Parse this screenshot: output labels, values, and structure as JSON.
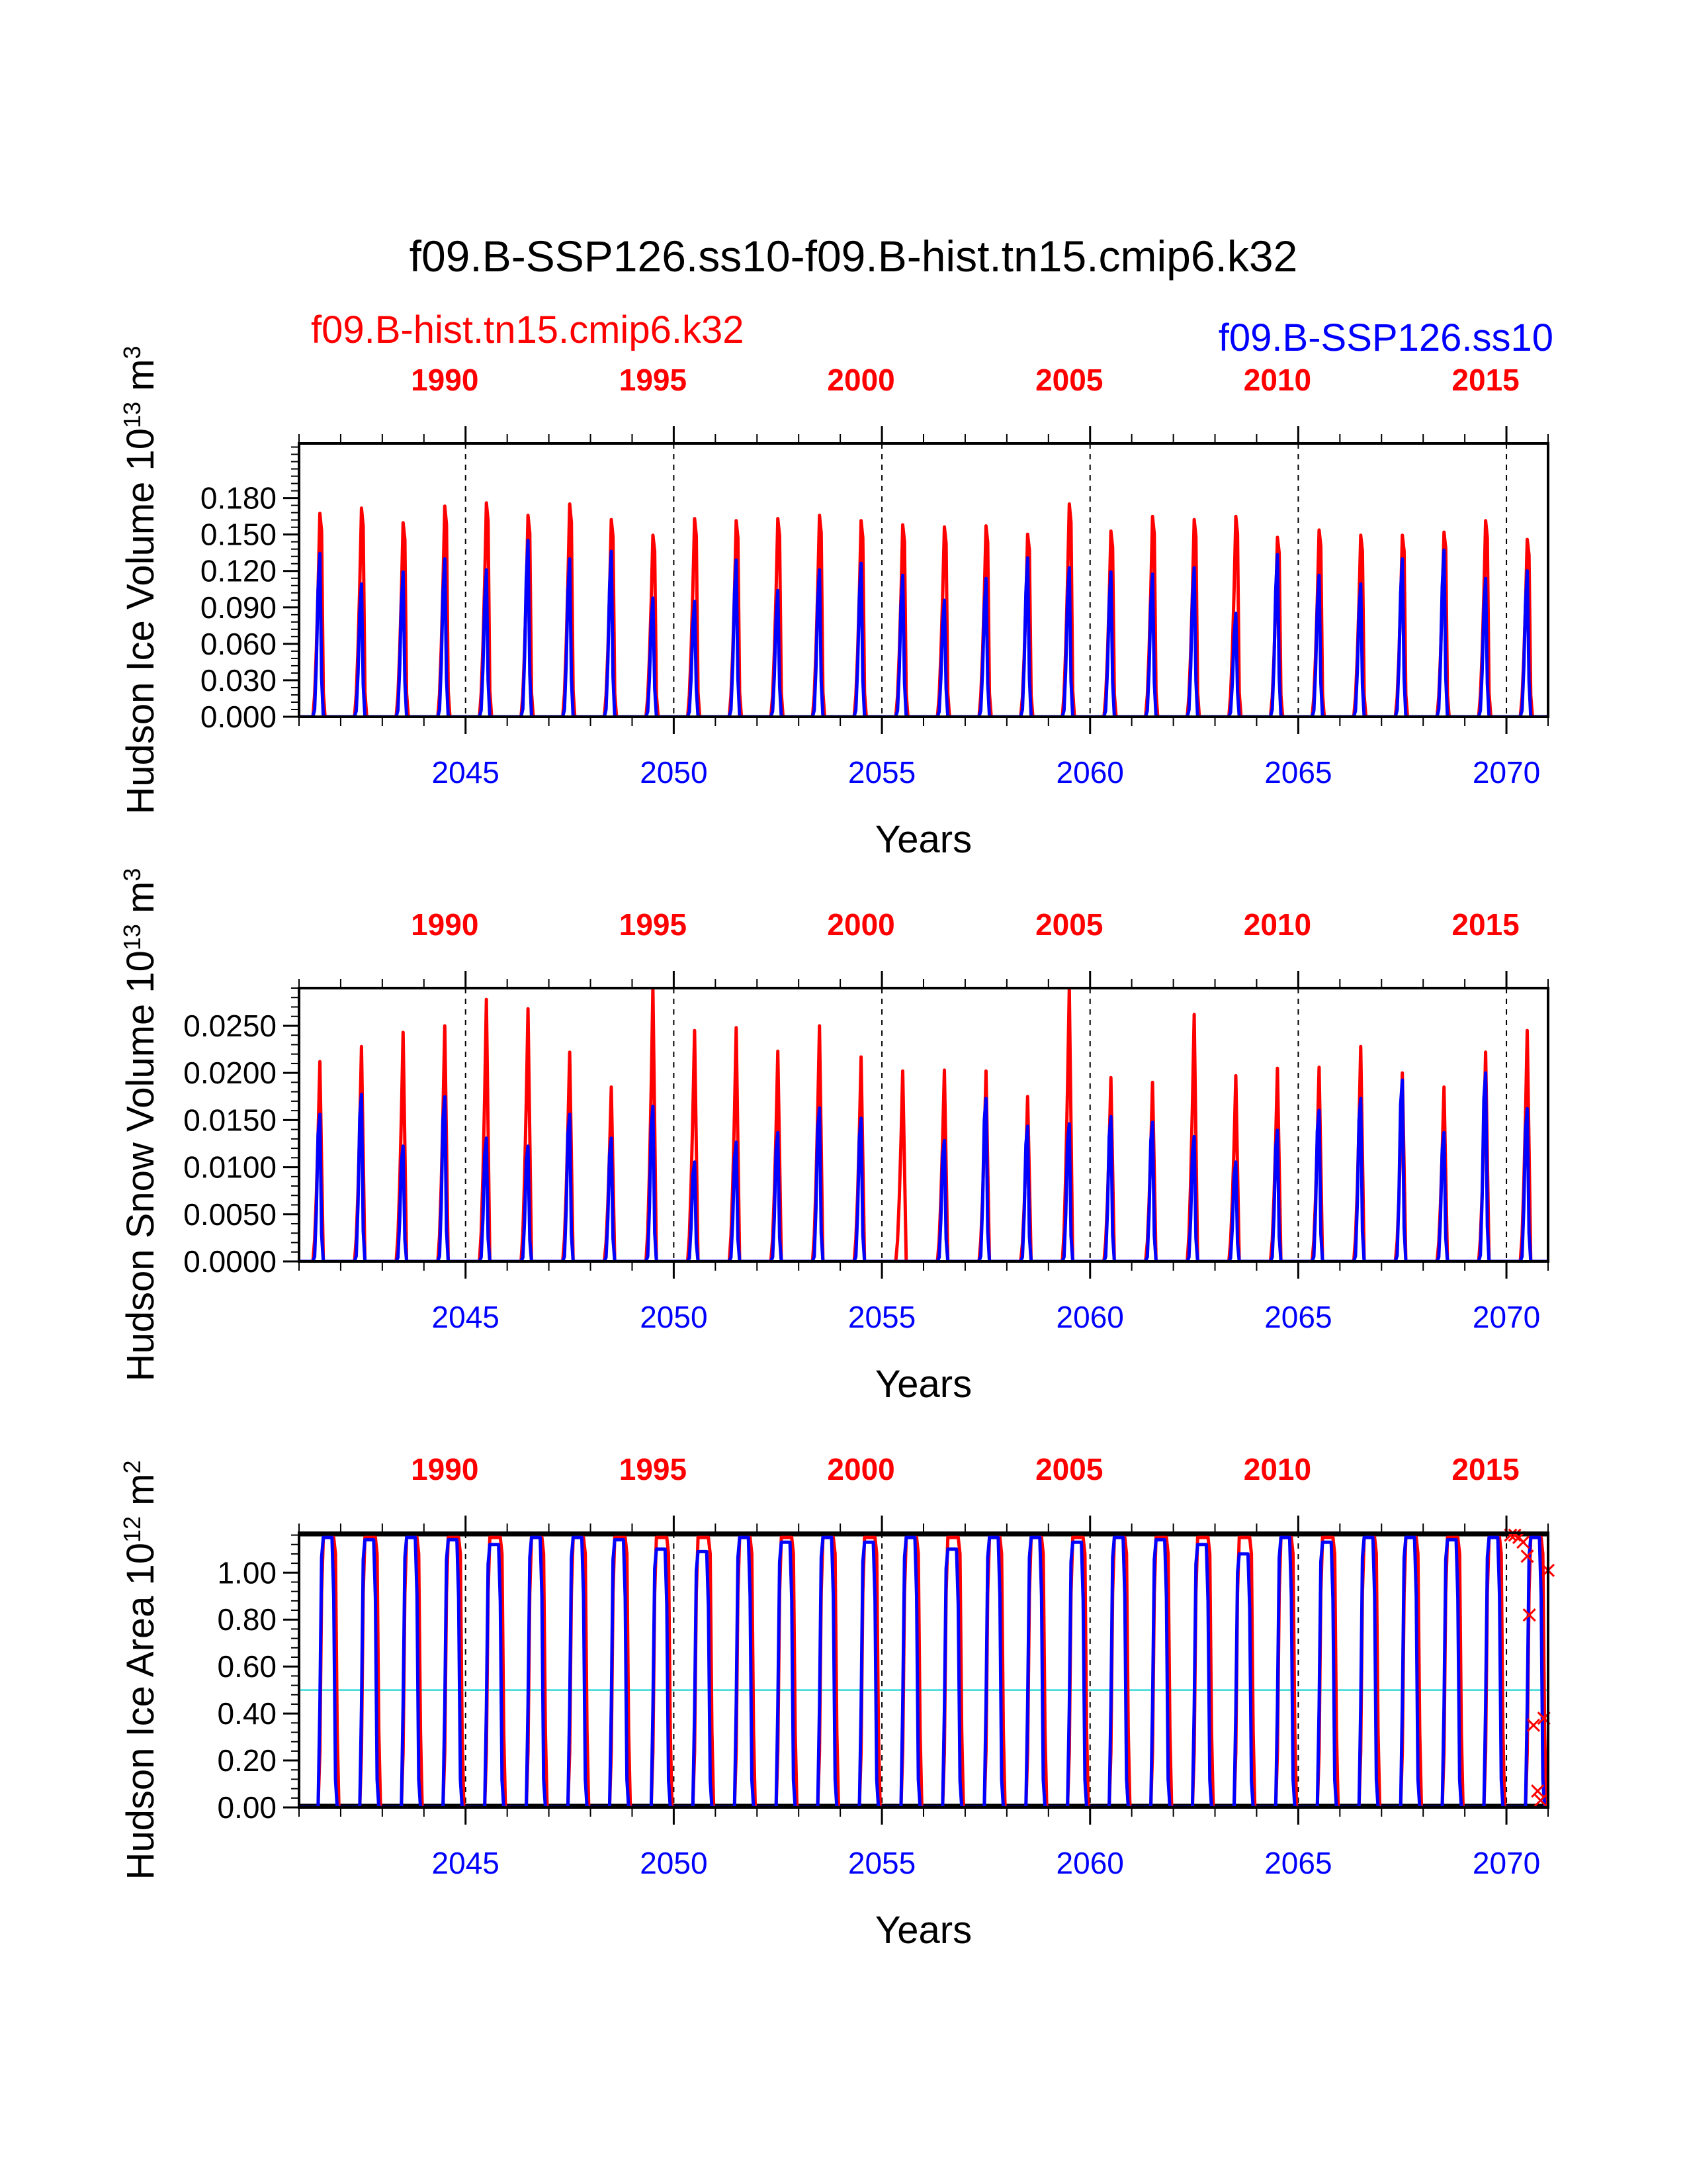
{
  "figure": {
    "title": "f09.B-SSP126.ss10-f09.B-hist.tn15.cmip6.k32",
    "legend": [
      {
        "label": "f09.B-hist.tn15.cmip6.k32",
        "color": "#ff0000"
      },
      {
        "label": "f09.B-SSP126.ss10",
        "color": "#0000ff"
      }
    ]
  },
  "chart_data": [
    {
      "type": "line",
      "ylabel": "Hudson Ice Volume",
      "yunit_base": "10",
      "yunit_exp": "13",
      "yunit_m": "m",
      "yunit_mexp": "3",
      "xlabel": "Years",
      "ylim": [
        0,
        0.225
      ],
      "yticks": [
        "0.000",
        "0.030",
        "0.060",
        "0.090",
        "0.120",
        "0.150",
        "0.180"
      ],
      "yticks_values": [
        0,
        0.03,
        0.06,
        0.09,
        0.12,
        0.15,
        0.18
      ],
      "xlim_bottom": [
        2041,
        2071
      ],
      "bottom_ticks": [
        "2045",
        "2050",
        "2055",
        "2060",
        "2065",
        "2070"
      ],
      "top_ticks": [
        "1990",
        "1995",
        "2000",
        "2005",
        "2010",
        "2015"
      ],
      "dashed_verticals_at": [
        2045,
        2050,
        2055,
        2060,
        2065,
        2070
      ],
      "series": [
        {
          "name": "f09.B-hist.tn15.cmip6.k32",
          "color": "#ff0000",
          "rise": 4,
          "rise_width": 2.2,
          "lag": 0,
          "annual_peaks": [
            0.195,
            0.2,
            0.186,
            0.202,
            0.205,
            0.193,
            0.204,
            0.189,
            0.174,
            0.19,
            0.188,
            0.19,
            0.193,
            0.188,
            0.184,
            0.182,
            0.183,
            0.175,
            0.204,
            0.178,
            0.192,
            0.189,
            0.192,
            0.172,
            0.179,
            0.174,
            0.174,
            0.177,
            0.188,
            0.17
          ]
        },
        {
          "name": "f09.B-SSP126.ss10",
          "color": "#0000ff",
          "rise": 4,
          "rise_width": 1.5,
          "lag": 0.3,
          "annual_peaks": [
            0.15,
            0.122,
            0.133,
            0.145,
            0.135,
            0.162,
            0.145,
            0.152,
            0.109,
            0.106,
            0.144,
            0.116,
            0.135,
            0.141,
            0.13,
            0.107,
            0.127,
            0.146,
            0.137,
            0.133,
            0.131,
            0.137,
            0.095,
            0.149,
            0.13,
            0.122,
            0.145,
            0.153,
            0.127,
            0.134
          ]
        }
      ]
    },
    {
      "type": "line",
      "ylabel": "Hudson Snow Volume",
      "yunit_base": "10",
      "yunit_exp": "13",
      "yunit_m": "m",
      "yunit_mexp": "3",
      "xlabel": "Years",
      "ylim": [
        0,
        0.029
      ],
      "yticks": [
        "0.0000",
        "0.0050",
        "0.0100",
        "0.0150",
        "0.0200",
        "0.0250"
      ],
      "yticks_values": [
        0,
        0.005,
        0.01,
        0.015,
        0.02,
        0.025
      ],
      "xlim_bottom": [
        2041,
        2071
      ],
      "bottom_ticks": [
        "2045",
        "2050",
        "2055",
        "2060",
        "2065",
        "2070"
      ],
      "top_ticks": [
        "1990",
        "1995",
        "2000",
        "2005",
        "2010",
        "2015"
      ],
      "dashed_verticals_at": [
        2045,
        2050,
        2055,
        2060,
        2065,
        2070
      ],
      "series": [
        {
          "name": "f09.B-hist.tn15.cmip6.k32",
          "color": "#ff0000",
          "rise": 4,
          "rise_width": 2.0,
          "lag": 0,
          "annual_peaks": [
            0.0212,
            0.0228,
            0.0243,
            0.025,
            0.0278,
            0.0268,
            0.0222,
            0.0185,
            0.029,
            0.0245,
            0.0248,
            0.0223,
            0.025,
            0.0217,
            0.0202,
            0.0203,
            0.0202,
            0.0175,
            0.029,
            0.0195,
            0.019,
            0.0262,
            0.0197,
            0.0205,
            0.0206,
            0.0228,
            0.02,
            0.0185,
            0.0222,
            0.0245
          ]
        },
        {
          "name": "f09.B-SSP126.ss10",
          "color": "#0000ff",
          "rise": 4,
          "rise_width": 1.4,
          "lag": 0.35,
          "annual_peaks": [
            0.0185,
            0.021,
            0.0145,
            0.0207,
            0.0155,
            0.0145,
            0.0185,
            0.0155,
            0.0195,
            0.0125,
            0.015,
            0.0162,
            0.0193,
            0.018,
            0.0,
            0.0152,
            0.0205,
            0.017,
            0.0173,
            0.0182,
            0.0175,
            0.0157,
            0.0125,
            0.0165,
            0.019,
            0.0205,
            0.0228,
            0.0162,
            0.0237,
            0.0192
          ]
        }
      ]
    },
    {
      "type": "line",
      "ylabel": "Hudson Ice Area",
      "yunit_base": "10",
      "yunit_exp": "12",
      "yunit_m": "m",
      "yunit_mexp": "2",
      "xlabel": "Years",
      "ylim": [
        0,
        1.17
      ],
      "yticks": [
        "0.00",
        "0.20",
        "0.40",
        "0.60",
        "0.80",
        "1.00"
      ],
      "yticks_values": [
        0,
        0.2,
        0.4,
        0.6,
        0.8,
        1.0
      ],
      "xlim_bottom": [
        2041,
        2071
      ],
      "bottom_ticks": [
        "2045",
        "2050",
        "2055",
        "2060",
        "2065",
        "2070"
      ],
      "top_ticks": [
        "1990",
        "1995",
        "2000",
        "2005",
        "2010",
        "2015"
      ],
      "dashed_verticals_at": [
        2045,
        2050,
        2055,
        2060,
        2065,
        2070
      ],
      "reference_lines": [
        {
          "y": 1.16,
          "color": "#000000"
        },
        {
          "y": 0.5,
          "color": "#00cccc"
        },
        {
          "y": 0.01,
          "color": "#000000"
        }
      ],
      "series": [
        {
          "name": "f09.B-hist.tn15.cmip6.k32",
          "color": "#ff0000",
          "rise": 5.5,
          "rise_width": 1.2,
          "plateau": 3.5,
          "fall_width": 1.0,
          "lag": 0.15,
          "annual_peaks": [
            1.15,
            1.15,
            1.15,
            1.15,
            1.15,
            1.15,
            1.15,
            1.15,
            1.15,
            1.15,
            1.15,
            1.15,
            1.15,
            1.15,
            1.15,
            1.15,
            1.15,
            1.15,
            1.15,
            1.15,
            1.15,
            1.15,
            1.15,
            1.15,
            1.15,
            1.15,
            1.15,
            1.15,
            1.15,
            1.15
          ]
        },
        {
          "name": "f09.B-SSP126.ss10",
          "color": "#0000ff",
          "rise": 5.5,
          "rise_width": 1.2,
          "plateau": 3.0,
          "fall_width": 1.0,
          "lag": 0,
          "annual_peaks": [
            1.15,
            1.14,
            1.15,
            1.14,
            1.12,
            1.15,
            1.15,
            1.14,
            1.1,
            1.09,
            1.15,
            1.13,
            1.15,
            1.13,
            1.15,
            1.1,
            1.15,
            1.15,
            1.13,
            1.15,
            1.14,
            1.12,
            1.08,
            1.15,
            1.13,
            1.15,
            1.15,
            1.14,
            1.15,
            1.15
          ]
        }
      ],
      "markers": {
        "color": "#ff0000",
        "symbol": "x",
        "points": [
          [
            2070.1,
            1.16
          ],
          [
            2070.2,
            1.16
          ],
          [
            2070.3,
            1.15
          ],
          [
            2070.4,
            1.13
          ],
          [
            2070.5,
            1.07
          ],
          [
            2070.55,
            0.82
          ],
          [
            2070.65,
            0.35
          ],
          [
            2070.75,
            0.07
          ],
          [
            2070.82,
            0.03
          ],
          [
            2070.9,
            0.38
          ],
          [
            2071.0,
            1.01
          ]
        ]
      }
    }
  ]
}
